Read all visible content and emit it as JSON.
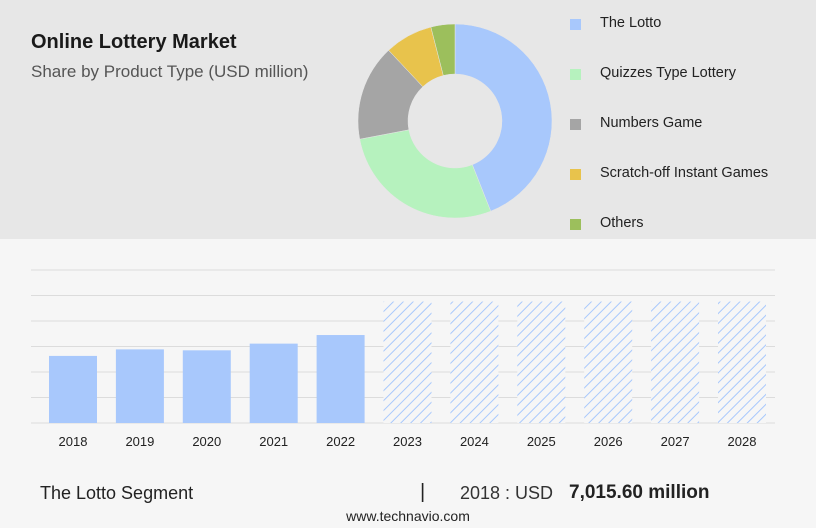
{
  "header": {
    "title": "Online Lottery Market",
    "subtitle": "Share by Product Type (USD million)"
  },
  "chart_data": [
    {
      "type": "pie",
      "title": "Share by Product Type (USD million)",
      "legend_position": "right",
      "slices": [
        {
          "label": "The Lotto",
          "value": 44,
          "color": "#a8c8fc"
        },
        {
          "label": "Quizzes Type Lottery",
          "value": 28,
          "color": "#b6f2be"
        },
        {
          "label": "Numbers Game",
          "value": 16,
          "color": "#a5a5a5"
        },
        {
          "label": "Scratch-off Instant Games",
          "value": 8,
          "color": "#e8c34c"
        },
        {
          "label": "Others",
          "value": 4,
          "color": "#9cbf5c"
        }
      ]
    },
    {
      "type": "bar",
      "categories": [
        "2018",
        "2019",
        "2020",
        "2021",
        "2022",
        "2023",
        "2024",
        "2025",
        "2026",
        "2027",
        "2028"
      ],
      "values": [
        7015.6,
        7700,
        7600,
        8300,
        9200,
        null,
        null,
        null,
        null,
        null,
        null
      ],
      "forecast_categories": [
        "2023",
        "2024",
        "2025",
        "2026",
        "2027",
        "2028"
      ],
      "forecast_values": [
        12700,
        12700,
        12700,
        12700,
        12700,
        12700
      ],
      "ylim": [
        0,
        16000
      ],
      "grid": true,
      "bar_color": "#a8c8fc",
      "forecast_style": "hatched"
    }
  ],
  "footer": {
    "segment_label": "The Lotto Segment",
    "separator": "|",
    "year_text": "2018 : USD",
    "value_text": "7,015.60 million",
    "url": "www.technavio.com"
  }
}
